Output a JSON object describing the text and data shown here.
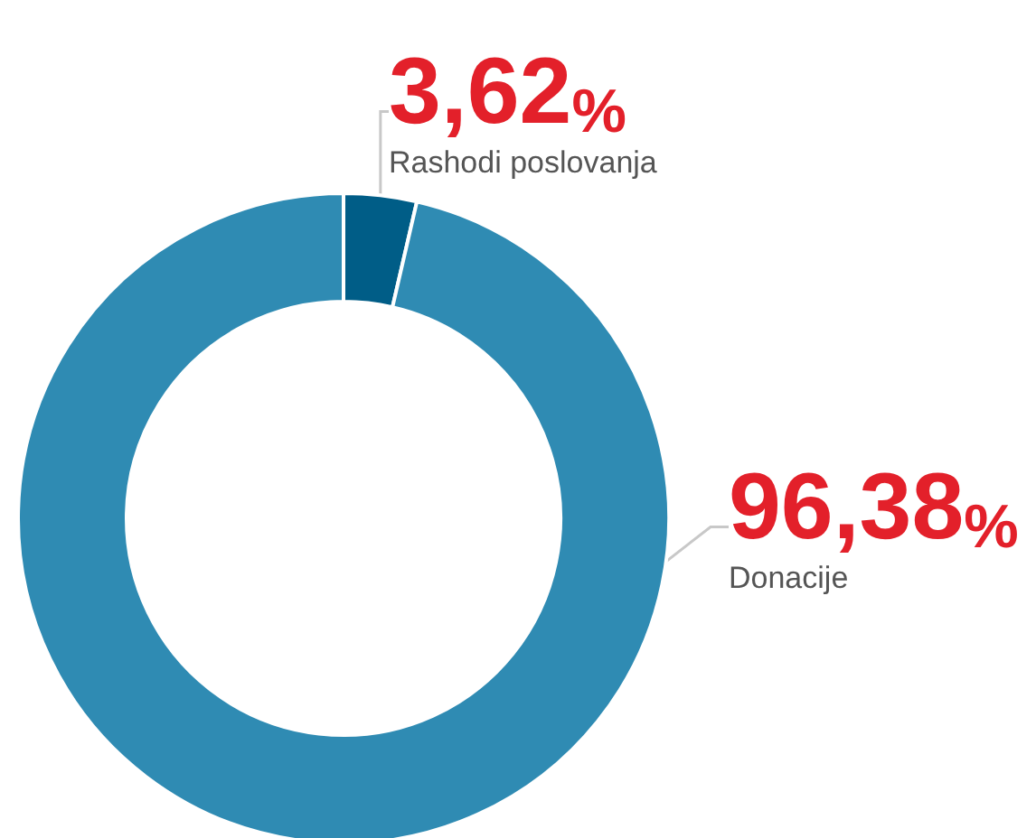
{
  "chart_data": {
    "type": "donut",
    "categories": [
      "Rashodi poslovanja",
      "Donacije"
    ],
    "values": [
      3.62,
      96.38
    ],
    "colors": [
      "#005d87",
      "#2f8bb3"
    ],
    "value_labels": [
      "3,62%",
      "96,38%"
    ],
    "legend": false
  }
}
